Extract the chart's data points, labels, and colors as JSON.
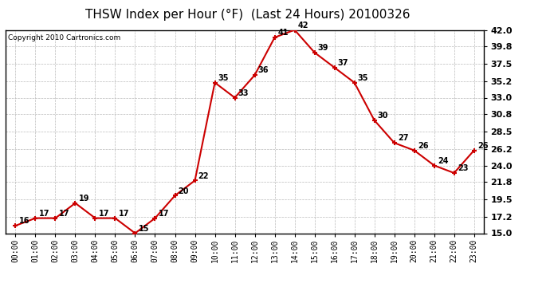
{
  "title": "THSW Index per Hour (°F)  (Last 24 Hours) 20100326",
  "copyright": "Copyright 2010 Cartronics.com",
  "hours": [
    "00:00",
    "01:00",
    "02:00",
    "03:00",
    "04:00",
    "05:00",
    "06:00",
    "07:00",
    "08:00",
    "09:00",
    "10:00",
    "11:00",
    "12:00",
    "13:00",
    "14:00",
    "15:00",
    "16:00",
    "17:00",
    "18:00",
    "19:00",
    "20:00",
    "21:00",
    "22:00",
    "23:00"
  ],
  "values": [
    16,
    17,
    17,
    19,
    17,
    17,
    15,
    17,
    20,
    22,
    35,
    33,
    36,
    41,
    42,
    39,
    37,
    35,
    30,
    27,
    26,
    24,
    23,
    26
  ],
  "ylim": [
    15.0,
    42.0
  ],
  "yticks": [
    15.0,
    17.2,
    19.5,
    21.8,
    24.0,
    26.2,
    28.5,
    30.8,
    33.0,
    35.2,
    37.5,
    39.8,
    42.0
  ],
  "ytick_labels": [
    "15.0",
    "17.2",
    "19.5",
    "21.8",
    "24.0",
    "26.2",
    "28.5",
    "30.8",
    "33.0",
    "35.2",
    "37.5",
    "39.8",
    "42.0"
  ],
  "line_color": "#cc0000",
  "marker_color": "#cc0000",
  "bg_color": "#ffffff",
  "plot_bg_color": "#ffffff",
  "grid_color": "#bbbbbb",
  "title_fontsize": 11,
  "tick_fontsize": 7,
  "label_fontsize": 7,
  "copyright_fontsize": 6.5
}
